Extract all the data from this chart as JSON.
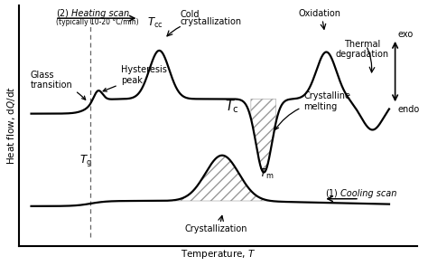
{
  "bg_color": "#ffffff",
  "line_color": "#000000",
  "figsize": [
    4.74,
    2.94
  ],
  "dpi": 100,
  "xlim": [
    0,
    10
  ],
  "ylim": [
    -4.2,
    4.0
  ],
  "fs_small": 6.0,
  "fs_base": 7.0,
  "fs_label": 7.5,
  "lw": 1.6
}
